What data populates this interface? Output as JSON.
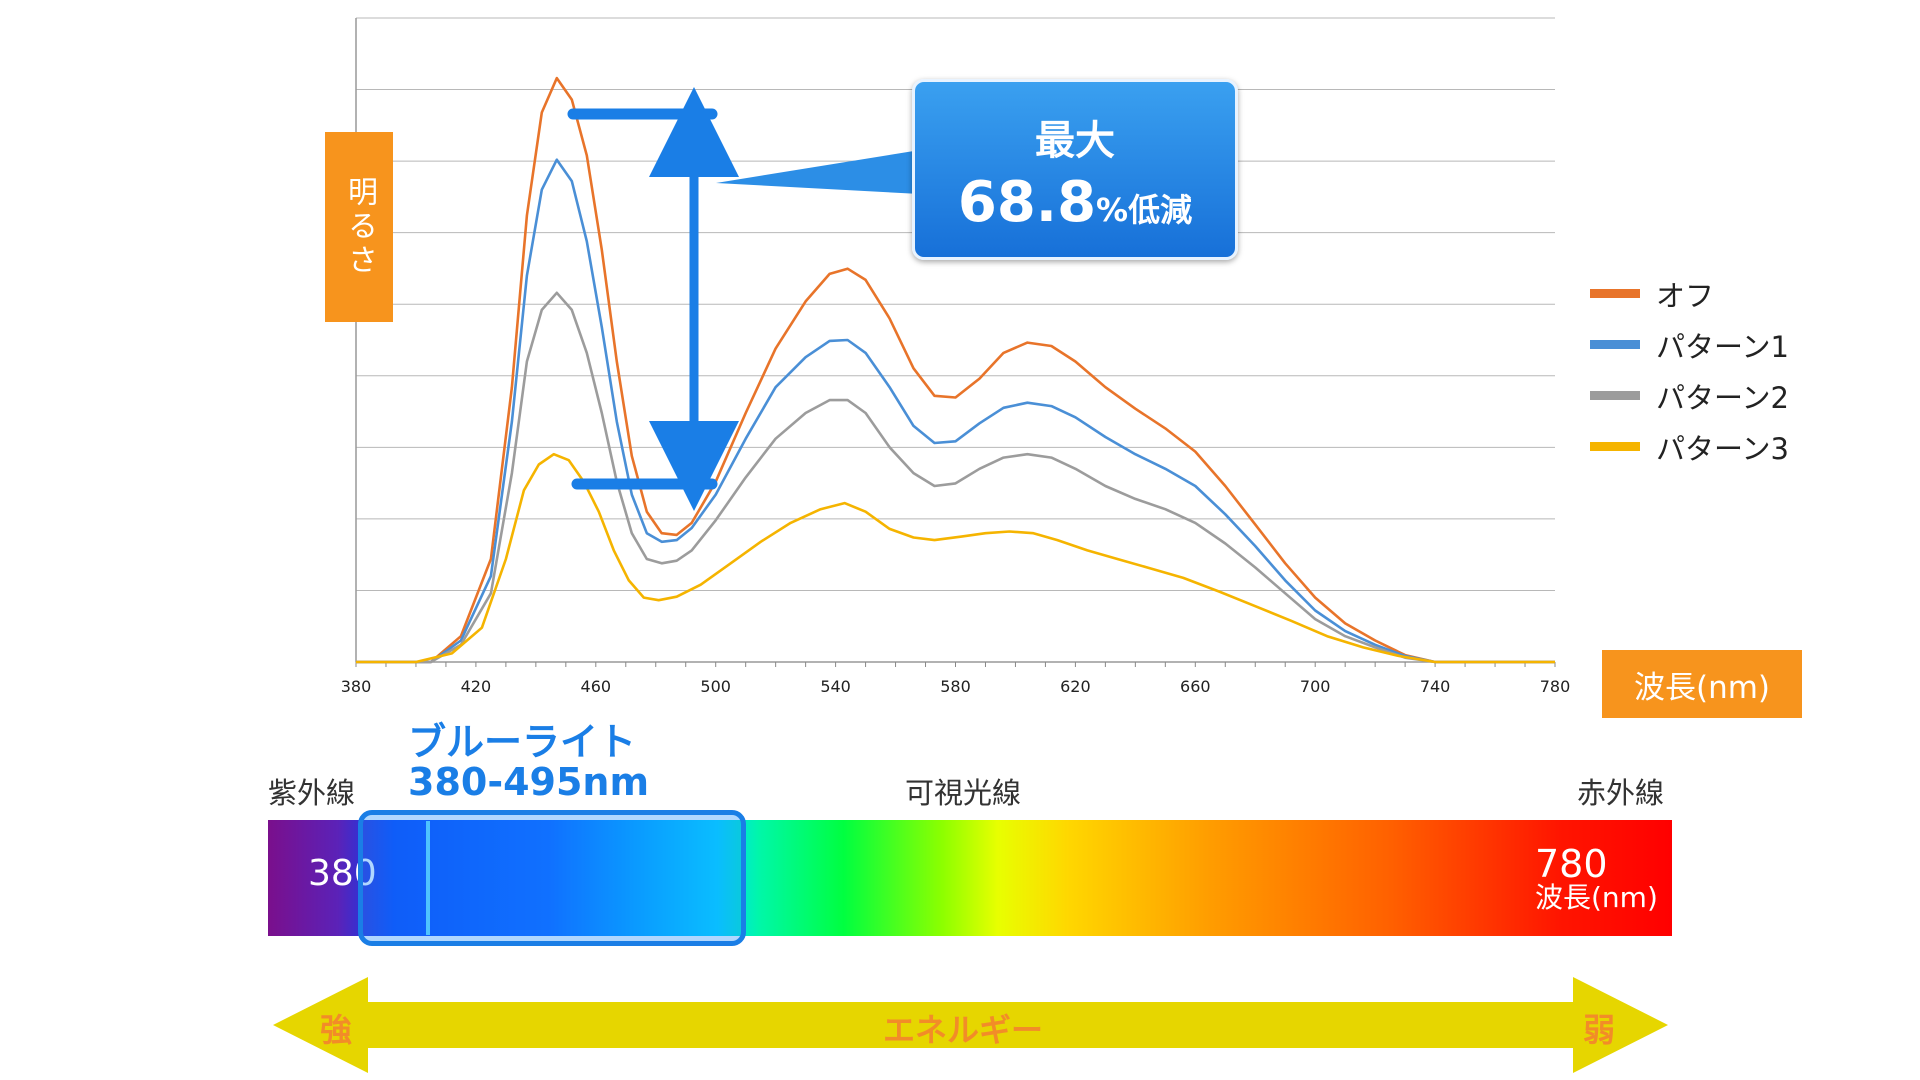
{
  "chart_data": {
    "type": "line",
    "xlabel": "波長(nm)",
    "ylabel": "明るさ",
    "xlim": [
      380,
      780
    ],
    "x_ticks": [
      "380",
      "420",
      "460",
      "500",
      "540",
      "580",
      "620",
      "660",
      "700",
      "740",
      "780"
    ],
    "grid": true,
    "legend_position": "right",
    "series": [
      {
        "name": "オフ",
        "color": "#e8742a",
        "points": [
          [
            380,
            0
          ],
          [
            405,
            0
          ],
          [
            415,
            0.3
          ],
          [
            425,
            1.2
          ],
          [
            432,
            3.2
          ],
          [
            437,
            5.2
          ],
          [
            442,
            6.4
          ],
          [
            447,
            6.8
          ],
          [
            452,
            6.55
          ],
          [
            457,
            5.9
          ],
          [
            462,
            4.8
          ],
          [
            467,
            3.5
          ],
          [
            472,
            2.4
          ],
          [
            477,
            1.75
          ],
          [
            482,
            1.5
          ],
          [
            487,
            1.48
          ],
          [
            492,
            1.62
          ],
          [
            500,
            2.1
          ],
          [
            510,
            2.9
          ],
          [
            520,
            3.65
          ],
          [
            530,
            4.2
          ],
          [
            538,
            4.52
          ],
          [
            544,
            4.58
          ],
          [
            550,
            4.45
          ],
          [
            558,
            4.0
          ],
          [
            566,
            3.42
          ],
          [
            573,
            3.1
          ],
          [
            580,
            3.08
          ],
          [
            588,
            3.3
          ],
          [
            596,
            3.6
          ],
          [
            604,
            3.72
          ],
          [
            612,
            3.68
          ],
          [
            620,
            3.5
          ],
          [
            630,
            3.2
          ],
          [
            640,
            2.95
          ],
          [
            650,
            2.72
          ],
          [
            660,
            2.45
          ],
          [
            670,
            2.05
          ],
          [
            680,
            1.6
          ],
          [
            690,
            1.15
          ],
          [
            700,
            0.75
          ],
          [
            710,
            0.45
          ],
          [
            720,
            0.25
          ],
          [
            730,
            0.08
          ],
          [
            740,
            0
          ],
          [
            780,
            0
          ]
        ]
      },
      {
        "name": "パターン1",
        "color": "#4a8fd6",
        "points": [
          [
            380,
            0
          ],
          [
            405,
            0
          ],
          [
            415,
            0.25
          ],
          [
            425,
            1.0
          ],
          [
            432,
            2.8
          ],
          [
            437,
            4.5
          ],
          [
            442,
            5.5
          ],
          [
            447,
            5.85
          ],
          [
            452,
            5.6
          ],
          [
            457,
            4.9
          ],
          [
            462,
            3.9
          ],
          [
            467,
            2.8
          ],
          [
            472,
            1.95
          ],
          [
            477,
            1.5
          ],
          [
            482,
            1.4
          ],
          [
            487,
            1.42
          ],
          [
            492,
            1.56
          ],
          [
            500,
            1.95
          ],
          [
            510,
            2.6
          ],
          [
            520,
            3.2
          ],
          [
            530,
            3.55
          ],
          [
            538,
            3.74
          ],
          [
            544,
            3.75
          ],
          [
            550,
            3.6
          ],
          [
            558,
            3.2
          ],
          [
            566,
            2.75
          ],
          [
            573,
            2.55
          ],
          [
            580,
            2.57
          ],
          [
            588,
            2.78
          ],
          [
            596,
            2.96
          ],
          [
            604,
            3.02
          ],
          [
            612,
            2.98
          ],
          [
            620,
            2.85
          ],
          [
            630,
            2.62
          ],
          [
            640,
            2.42
          ],
          [
            650,
            2.25
          ],
          [
            660,
            2.05
          ],
          [
            670,
            1.72
          ],
          [
            680,
            1.35
          ],
          [
            690,
            0.95
          ],
          [
            700,
            0.6
          ],
          [
            710,
            0.36
          ],
          [
            720,
            0.2
          ],
          [
            730,
            0.07
          ],
          [
            740,
            0
          ],
          [
            780,
            0
          ]
        ]
      },
      {
        "name": "パターン2",
        "color": "#9c9c9c",
        "points": [
          [
            380,
            0
          ],
          [
            405,
            0
          ],
          [
            415,
            0.2
          ],
          [
            425,
            0.8
          ],
          [
            432,
            2.2
          ],
          [
            437,
            3.5
          ],
          [
            442,
            4.1
          ],
          [
            447,
            4.3
          ],
          [
            452,
            4.1
          ],
          [
            457,
            3.6
          ],
          [
            462,
            2.9
          ],
          [
            467,
            2.1
          ],
          [
            472,
            1.5
          ],
          [
            477,
            1.2
          ],
          [
            482,
            1.15
          ],
          [
            487,
            1.18
          ],
          [
            492,
            1.3
          ],
          [
            500,
            1.65
          ],
          [
            510,
            2.15
          ],
          [
            520,
            2.6
          ],
          [
            530,
            2.9
          ],
          [
            538,
            3.05
          ],
          [
            544,
            3.05
          ],
          [
            550,
            2.9
          ],
          [
            558,
            2.5
          ],
          [
            566,
            2.2
          ],
          [
            573,
            2.05
          ],
          [
            580,
            2.08
          ],
          [
            588,
            2.25
          ],
          [
            596,
            2.38
          ],
          [
            604,
            2.42
          ],
          [
            612,
            2.38
          ],
          [
            620,
            2.25
          ],
          [
            630,
            2.05
          ],
          [
            640,
            1.9
          ],
          [
            650,
            1.78
          ],
          [
            660,
            1.62
          ],
          [
            670,
            1.38
          ],
          [
            680,
            1.1
          ],
          [
            690,
            0.8
          ],
          [
            700,
            0.5
          ],
          [
            710,
            0.3
          ],
          [
            720,
            0.17
          ],
          [
            730,
            0.05
          ],
          [
            740,
            0
          ],
          [
            780,
            0
          ]
        ]
      },
      {
        "name": "パターン3",
        "color": "#f5b400",
        "points": [
          [
            380,
            0
          ],
          [
            400,
            0
          ],
          [
            412,
            0.1
          ],
          [
            422,
            0.4
          ],
          [
            430,
            1.2
          ],
          [
            436,
            2.0
          ],
          [
            441,
            2.3
          ],
          [
            446,
            2.42
          ],
          [
            451,
            2.35
          ],
          [
            456,
            2.1
          ],
          [
            461,
            1.75
          ],
          [
            466,
            1.3
          ],
          [
            471,
            0.95
          ],
          [
            476,
            0.75
          ],
          [
            481,
            0.72
          ],
          [
            487,
            0.76
          ],
          [
            495,
            0.9
          ],
          [
            505,
            1.15
          ],
          [
            515,
            1.4
          ],
          [
            525,
            1.62
          ],
          [
            535,
            1.78
          ],
          [
            543,
            1.85
          ],
          [
            550,
            1.75
          ],
          [
            558,
            1.55
          ],
          [
            566,
            1.45
          ],
          [
            573,
            1.42
          ],
          [
            582,
            1.46
          ],
          [
            590,
            1.5
          ],
          [
            598,
            1.52
          ],
          [
            606,
            1.5
          ],
          [
            614,
            1.42
          ],
          [
            624,
            1.3
          ],
          [
            634,
            1.2
          ],
          [
            644,
            1.1
          ],
          [
            656,
            0.98
          ],
          [
            668,
            0.82
          ],
          [
            680,
            0.65
          ],
          [
            692,
            0.48
          ],
          [
            704,
            0.3
          ],
          [
            716,
            0.17
          ],
          [
            728,
            0.07
          ],
          [
            740,
            0
          ],
          [
            780,
            0
          ]
        ]
      }
    ],
    "annotation": {
      "line1": "最大",
      "value": "68.8",
      "suffix": "%低減"
    }
  },
  "spectrum": {
    "uv_label": "紫外線",
    "visible_label": "可視光線",
    "ir_label": "赤外線",
    "start_value": "380",
    "end_value": "780",
    "end_unit": "波長(nm)",
    "blue_light_title": "ブルーライト",
    "blue_light_range": "380-495nm"
  },
  "energy": {
    "label": "エネルギー",
    "strong": "強",
    "weak": "弱",
    "arrow_color": "#e6d600"
  }
}
